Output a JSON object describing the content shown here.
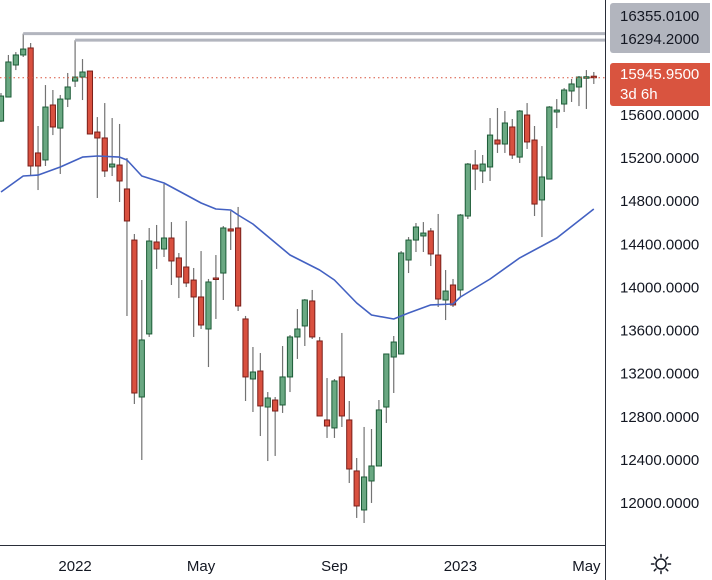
{
  "chart_data": {
    "type": "candlestick",
    "title": "",
    "interval": "weekly",
    "ylim": [
      11611,
      16667
    ],
    "y_ticks": [
      "12000.0000",
      "12400.0000",
      "12800.0000",
      "13200.0000",
      "13600.0000",
      "14000.0000",
      "14400.0000",
      "14800.0000",
      "15200.0000",
      "15600.0000"
    ],
    "x_labels": [
      {
        "index": 10,
        "label": "2022"
      },
      {
        "index": 27,
        "label": "May"
      },
      {
        "index": 45,
        "label": "Sep"
      },
      {
        "index": 62,
        "label": "2023"
      },
      {
        "index": 79,
        "label": "May"
      }
    ],
    "candles_ohlc": [
      [
        15544,
        15804,
        15535,
        15776
      ],
      [
        15767,
        16157,
        15767,
        16092
      ],
      [
        16064,
        16184,
        16017,
        16157
      ],
      [
        16157,
        16355,
        16138,
        16212
      ],
      [
        16222,
        16268,
        15034,
        15127
      ],
      [
        15248,
        15498,
        14904,
        15127
      ],
      [
        15183,
        15878,
        15127,
        15674
      ],
      [
        15693,
        15832,
        15414,
        15489
      ],
      [
        15479,
        15786,
        15053,
        15748
      ],
      [
        15748,
        15990,
        15674,
        15860
      ],
      [
        15915,
        16294,
        15860,
        15952
      ],
      [
        15952,
        16119,
        15739,
        15999
      ],
      [
        16008,
        16008,
        15424,
        15424
      ],
      [
        15442,
        15581,
        14830,
        15387
      ],
      [
        15387,
        15711,
        15025,
        15081
      ],
      [
        15118,
        15572,
        15034,
        15145
      ],
      [
        15136,
        15517,
        14793,
        14988
      ],
      [
        14914,
        15201,
        13735,
        14617
      ],
      [
        14440,
        14496,
        12919,
        13021
      ],
      [
        12984,
        14069,
        12400,
        13513
      ],
      [
        13569,
        14552,
        13541,
        14431
      ],
      [
        14422,
        14580,
        14172,
        14357
      ],
      [
        14357,
        14960,
        14283,
        14459
      ],
      [
        14459,
        14607,
        14023,
        14246
      ],
      [
        14274,
        14320,
        13902,
        14097
      ],
      [
        14190,
        14617,
        14004,
        14042
      ],
      [
        14069,
        14181,
        13541,
        13912
      ],
      [
        13912,
        14338,
        13615,
        13652
      ],
      [
        13615,
        14079,
        13262,
        14051
      ],
      [
        14088,
        14301,
        13708,
        14079
      ],
      [
        14134,
        14570,
        13884,
        14552
      ],
      [
        14543,
        14709,
        14348,
        14524
      ],
      [
        14552,
        14747,
        13782,
        13828
      ],
      [
        13708,
        13736,
        12947,
        13170
      ],
      [
        13151,
        13448,
        12845,
        13216
      ],
      [
        13225,
        13392,
        12622,
        12901
      ],
      [
        12891,
        13030,
        12390,
        12975
      ],
      [
        12956,
        12984,
        12437,
        12854
      ],
      [
        12910,
        13457,
        12836,
        13170
      ],
      [
        13170,
        13559,
        13030,
        13541
      ],
      [
        13541,
        13800,
        13337,
        13615
      ],
      [
        13643,
        13893,
        13457,
        13884
      ],
      [
        13875,
        13977,
        13522,
        13541
      ],
      [
        13504,
        13541,
        12808,
        12808
      ],
      [
        12771,
        13160,
        12604,
        12715
      ],
      [
        12697,
        13151,
        12604,
        13133
      ],
      [
        13170,
        13578,
        12706,
        12808
      ],
      [
        12771,
        12947,
        12186,
        12316
      ],
      [
        12298,
        12418,
        11862,
        11973
      ],
      [
        11936,
        12706,
        11815,
        12242
      ],
      [
        12205,
        12687,
        12001,
        12344
      ],
      [
        12344,
        12956,
        12344,
        12864
      ],
      [
        12891,
        13383,
        12743,
        13383
      ],
      [
        13355,
        13550,
        13021,
        13494
      ],
      [
        13383,
        14338,
        13383,
        14320
      ],
      [
        14255,
        14468,
        14134,
        14440
      ],
      [
        14440,
        14598,
        14329,
        14561
      ],
      [
        14478,
        14607,
        14329,
        14505
      ],
      [
        14524,
        14552,
        14199,
        14311
      ],
      [
        14301,
        14682,
        13819,
        13893
      ],
      [
        13884,
        14162,
        13698,
        13967
      ],
      [
        14023,
        14079,
        13819,
        13838
      ],
      [
        13977,
        14682,
        13912,
        14672
      ],
      [
        14663,
        15155,
        14635,
        15145
      ],
      [
        15136,
        15275,
        14904,
        15099
      ],
      [
        15081,
        15229,
        14969,
        15145
      ],
      [
        15118,
        15572,
        14988,
        15414
      ],
      [
        15368,
        15665,
        15248,
        15331
      ],
      [
        15331,
        15637,
        15248,
        15526
      ],
      [
        15489,
        15563,
        15192,
        15229
      ],
      [
        15210,
        15646,
        15155,
        15637
      ],
      [
        15600,
        15711,
        15285,
        15350
      ],
      [
        15368,
        15498,
        14663,
        14774
      ],
      [
        14812,
        15312,
        14468,
        15025
      ],
      [
        15006,
        15683,
        15006,
        15674
      ],
      [
        15628,
        15748,
        15479,
        15646
      ],
      [
        15702,
        15850,
        15628,
        15832
      ],
      [
        15823,
        15934,
        15721,
        15888
      ],
      [
        15860,
        15962,
        15683,
        15952
      ],
      [
        15950,
        16017,
        15656,
        15955
      ],
      [
        15960,
        15999,
        15888,
        15945.95
      ]
    ],
    "moving_average": [
      [
        0,
        14886
      ],
      [
        3,
        15034
      ],
      [
        5,
        15043
      ],
      [
        8,
        15118
      ],
      [
        11,
        15210
      ],
      [
        13,
        15220
      ],
      [
        16,
        15210
      ],
      [
        17,
        15183
      ],
      [
        19,
        15034
      ],
      [
        22,
        14969
      ],
      [
        25,
        14858
      ],
      [
        27,
        14784
      ],
      [
        29,
        14728
      ],
      [
        31,
        14719
      ],
      [
        32,
        14672
      ],
      [
        34,
        14589
      ],
      [
        39,
        14301
      ],
      [
        43,
        14162
      ],
      [
        45,
        14069
      ],
      [
        48,
        13856
      ],
      [
        50,
        13745
      ],
      [
        53,
        13708
      ],
      [
        55,
        13763
      ],
      [
        58,
        13838
      ],
      [
        61,
        13847
      ],
      [
        62,
        13912
      ],
      [
        66,
        14079
      ],
      [
        70,
        14274
      ],
      [
        75,
        14459
      ],
      [
        80,
        14728
      ]
    ],
    "horizontal_lines": [
      {
        "price": 16355.01,
        "label": "16355.0100",
        "from_index": 3
      },
      {
        "price": 16294.2,
        "label": "16294.2000",
        "from_index": 10
      }
    ],
    "last_price": {
      "price": 15945.95,
      "label": "15945.9500",
      "countdown": "3d 6h"
    },
    "colors": {
      "up": "#6aa882",
      "up_border": "#1c5c37",
      "down": "#d9503f",
      "down_border": "#7a1f1a",
      "wick": "#737373",
      "ma": "#4361c2",
      "hline": "#b2b5be",
      "last": "#d9543f"
    }
  },
  "icons": {
    "settings": "sun-gear-icon"
  }
}
